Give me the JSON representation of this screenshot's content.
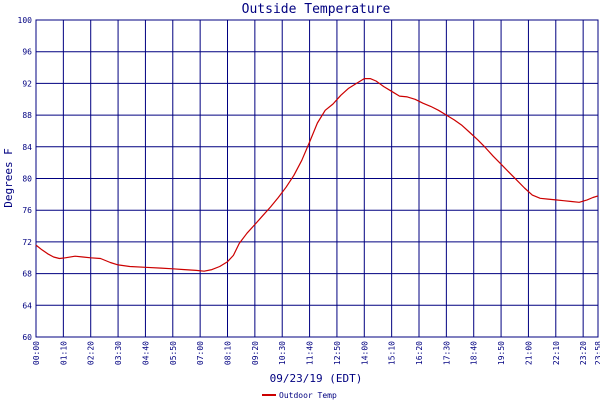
{
  "chart_data": {
    "type": "line",
    "title": "Outside Temperature",
    "xlabel": "09/23/19 (EDT)",
    "ylabel": "Degrees F",
    "ylim": [
      60,
      100
    ],
    "yticks": [
      60,
      64,
      68,
      72,
      76,
      80,
      84,
      88,
      92,
      96,
      100
    ],
    "xticks": [
      "00:00",
      "01:10",
      "02:20",
      "03:30",
      "04:40",
      "05:50",
      "07:00",
      "08:10",
      "09:20",
      "10:30",
      "11:40",
      "12:50",
      "14:00",
      "15:10",
      "16:20",
      "17:30",
      "18:40",
      "19:50",
      "21:00",
      "22:10",
      "23:20",
      "23:58"
    ],
    "xlim_minutes": [
      0,
      1438
    ],
    "grid": true,
    "legend_position": "bottom-left",
    "series": [
      {
        "name": "Outdoor Temp",
        "color": "#cc0000",
        "x": [
          "00:00",
          "00:15",
          "00:30",
          "00:45",
          "01:00",
          "01:15",
          "01:40",
          "02:00",
          "02:20",
          "02:45",
          "03:10",
          "03:30",
          "04:00",
          "04:40",
          "05:20",
          "05:50",
          "06:20",
          "06:50",
          "07:10",
          "07:30",
          "07:50",
          "08:10",
          "08:25",
          "08:40",
          "09:00",
          "09:20",
          "09:40",
          "10:00",
          "10:20",
          "10:40",
          "11:00",
          "11:20",
          "11:40",
          "12:00",
          "12:20",
          "12:40",
          "13:00",
          "13:20",
          "13:40",
          "14:00",
          "14:15",
          "14:30",
          "14:50",
          "15:10",
          "15:30",
          "15:50",
          "16:10",
          "16:30",
          "16:50",
          "17:10",
          "17:30",
          "17:50",
          "18:10",
          "18:30",
          "18:50",
          "19:10",
          "19:30",
          "19:50",
          "20:10",
          "20:30",
          "20:50",
          "21:10",
          "21:30",
          "21:50",
          "22:10",
          "22:30",
          "22:50",
          "23:10",
          "23:30",
          "23:45",
          "23:58"
        ],
        "values": [
          71.6,
          71.0,
          70.5,
          70.1,
          69.9,
          70.0,
          70.2,
          70.1,
          70.0,
          69.9,
          69.4,
          69.1,
          68.9,
          68.8,
          68.7,
          68.6,
          68.5,
          68.4,
          68.3,
          68.5,
          68.9,
          69.5,
          70.3,
          71.8,
          73.1,
          74.2,
          75.3,
          76.4,
          77.6,
          78.9,
          80.4,
          82.3,
          84.6,
          87.0,
          88.6,
          89.4,
          90.5,
          91.4,
          92.0,
          92.6,
          92.6,
          92.3,
          91.6,
          91.0,
          90.4,
          90.3,
          90.0,
          89.5,
          89.1,
          88.6,
          88.0,
          87.4,
          86.7,
          85.8,
          84.9,
          83.9,
          82.8,
          81.8,
          80.8,
          79.8,
          78.8,
          77.9,
          77.5,
          77.4,
          77.3,
          77.2,
          77.1,
          77.0,
          77.3,
          77.6,
          77.8
        ]
      }
    ]
  }
}
